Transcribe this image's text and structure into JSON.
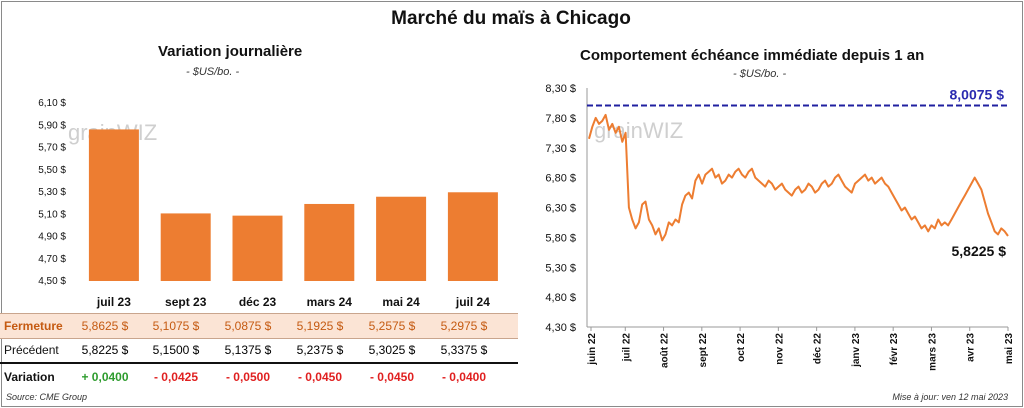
{
  "title": "Marché du maïs à Chicago",
  "left": {
    "title": "Variation journalière",
    "unit": "- $US/bo. -",
    "watermark": "grainWIZ"
  },
  "right": {
    "title": "Comportement échéance immédiate depuis 1 an",
    "unit": "- $US/bo. -",
    "watermark": "grainWIZ",
    "ref_label": "8,0075 $",
    "last_label": "5,8225 $"
  },
  "table": {
    "close_label": "Fermeture",
    "prev_label": "Précédent",
    "var_label": "Variation",
    "close": [
      "5,8625  $",
      "5,1075  $",
      "5,0875  $",
      "5,1925  $",
      "5,2575  $",
      "5,2975  $"
    ],
    "prev": [
      "5,8225  $",
      "5,1500  $",
      "5,1375  $",
      "5,2375  $",
      "5,3025  $",
      "5,3375  $"
    ],
    "var": [
      "+ 0,0400",
      "- 0,0425",
      "- 0,0500",
      "- 0,0450",
      "- 0,0450",
      "- 0,0400"
    ]
  },
  "footer": {
    "source": "Source: CME Group",
    "updated": "Mise à jour: ven 12 mai 2023"
  },
  "colors": {
    "orange": "#ED7D31",
    "ref_line": "#2020A0",
    "up": "#2E9C2E",
    "down": "#E02020",
    "band": "#FBE4D5"
  },
  "chart_data": [
    {
      "type": "bar",
      "title": "Variation journalière",
      "ylabel": "- $US/bo. -",
      "categories": [
        "juil 23",
        "sept 23",
        "déc 23",
        "mars 24",
        "mai 24",
        "juil 24"
      ],
      "values": [
        5.8625,
        5.1075,
        5.0875,
        5.1925,
        5.2575,
        5.2975
      ],
      "ylim": [
        4.5,
        6.1
      ],
      "yticks": [
        "6,10 $",
        "5,90 $",
        "5,70 $",
        "5,50 $",
        "5,30 $",
        "5,10 $",
        "4,90 $",
        "4,70 $",
        "4,50 $"
      ],
      "ytick_values": [
        6.1,
        5.9,
        5.7,
        5.5,
        5.3,
        5.1,
        4.9,
        4.7,
        4.5
      ],
      "grid": false
    },
    {
      "type": "line",
      "title": "Comportement échéance immédiate depuis 1 an",
      "ylabel": "- $US/bo. -",
      "ylim": [
        4.3,
        8.3
      ],
      "yticks": [
        "8,30 $",
        "7,80 $",
        "7,30 $",
        "6,80 $",
        "6,30 $",
        "5,80 $",
        "5,30 $",
        "4,80 $",
        "4,30 $"
      ],
      "ytick_values": [
        8.3,
        7.8,
        7.3,
        6.8,
        6.3,
        5.8,
        5.3,
        4.8,
        4.3
      ],
      "xticks": [
        "juin 22",
        "juil 22",
        "août 22",
        "sept 22",
        "oct 22",
        "nov 22",
        "déc 22",
        "janv 23",
        "févr 23",
        "mars 23",
        "avr 23",
        "mai 23"
      ],
      "reference_line": 8.0075,
      "grid": false,
      "series": [
        {
          "values": [
            7.45,
            7.65,
            7.8,
            7.7,
            7.75,
            7.85,
            7.6,
            7.7,
            7.55,
            7.65,
            7.4,
            7.55,
            6.3,
            6.1,
            5.95,
            6.05,
            6.35,
            6.4,
            6.1,
            6.0,
            5.85,
            5.95,
            5.75,
            5.85,
            6.05,
            6.0,
            6.1,
            6.05,
            6.35,
            6.5,
            6.55,
            6.45,
            6.75,
            6.85,
            6.7,
            6.85,
            6.9,
            6.95,
            6.8,
            6.85,
            6.7,
            6.75,
            6.85,
            6.8,
            6.9,
            6.95,
            6.85,
            6.8,
            6.9,
            6.95,
            6.8,
            6.75,
            6.7,
            6.65,
            6.75,
            6.7,
            6.6,
            6.65,
            6.7,
            6.6,
            6.55,
            6.5,
            6.6,
            6.65,
            6.55,
            6.6,
            6.7,
            6.65,
            6.55,
            6.6,
            6.7,
            6.75,
            6.65,
            6.7,
            6.8,
            6.85,
            6.75,
            6.65,
            6.6,
            6.55,
            6.7,
            6.75,
            6.8,
            6.85,
            6.75,
            6.8,
            6.7,
            6.75,
            6.8,
            6.7,
            6.65,
            6.55,
            6.45,
            6.35,
            6.25,
            6.3,
            6.2,
            6.1,
            6.15,
            6.05,
            5.95,
            6.0,
            5.9,
            6.0,
            5.95,
            6.1,
            6.0,
            6.05,
            6.0,
            6.1,
            6.2,
            6.3,
            6.4,
            6.5,
            6.6,
            6.7,
            6.8,
            6.7,
            6.6,
            6.4,
            6.2,
            6.05,
            5.9,
            5.85,
            5.95,
            5.9,
            5.8225
          ]
        }
      ]
    }
  ]
}
